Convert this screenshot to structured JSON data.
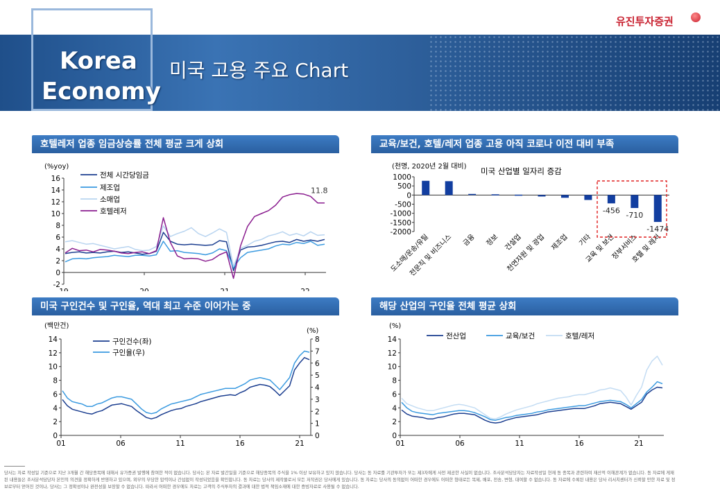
{
  "header": {
    "brand_line1": "Korea",
    "brand_line2": "Economy",
    "title": "미국 고용 주요 Chart",
    "logo": "유진투자증권",
    "colors": {
      "banner": "#2c5d98",
      "accent": "#c8202f"
    }
  },
  "panels": {
    "p1": {
      "title": "호텔레저 업종 임금상승률 전체 평균 크게 상회"
    },
    "p2": {
      "title": "교육/보건, 호텔/레저 업종 고용 아직 코로나 이전 대비 부족"
    },
    "p3": {
      "title": "미국 구인건수 및 구인율, 역대 최고 수준 이어가는 중"
    },
    "p4": {
      "title": "해당 산업의 구인율 전체 평균 상회"
    }
  },
  "chart_data": [
    {
      "type": "line",
      "ylabel": "(%yoy)",
      "ylim": [
        -2,
        16
      ],
      "yticks": [
        "16",
        "14",
        "12",
        "10",
        "8",
        "6",
        "4",
        "2",
        "0",
        "-2"
      ],
      "xticks": [
        "19",
        "20",
        "21",
        "22"
      ],
      "annotation": "11.8",
      "series": [
        {
          "name": "전체 시간당임금",
          "color": "#1a3d8f",
          "values": [
            3.2,
            3.4,
            3.5,
            3.3,
            3.4,
            3.3,
            3.5,
            3.6,
            3.4,
            3.5,
            3.3,
            3.1,
            3.2,
            3.6,
            6.8,
            5.3,
            4.8,
            4.7,
            4.8,
            4.7,
            4.6,
            4.7,
            5.4,
            5.2,
            0.3,
            3.8,
            4.3,
            4.4,
            4.6,
            4.9,
            5.2,
            5.3,
            5.1,
            5.6,
            5.3,
            5.5,
            5.3,
            5.6
          ]
        },
        {
          "name": "제조업",
          "color": "#3a9ae0",
          "values": [
            1.8,
            2.3,
            2.4,
            2.3,
            2.5,
            2.6,
            2.7,
            2.9,
            2.8,
            2.7,
            2.9,
            2.9,
            2.8,
            3.0,
            5.3,
            3.6,
            3.7,
            3.4,
            3.3,
            3.2,
            3.0,
            3.3,
            4.0,
            3.7,
            0.8,
            2.5,
            3.4,
            3.6,
            3.8,
            4.0,
            4.5,
            4.8,
            4.7,
            5.1,
            4.9,
            5.3,
            4.6,
            4.8
          ]
        },
        {
          "name": "소매업",
          "color": "#b8d4f0",
          "values": [
            5.2,
            5.4,
            5.1,
            4.8,
            4.9,
            4.6,
            4.3,
            4.0,
            4.2,
            4.4,
            3.9,
            3.7,
            3.8,
            4.4,
            7.9,
            6.1,
            6.6,
            7.0,
            7.6,
            6.6,
            6.1,
            6.7,
            7.4,
            6.8,
            1.0,
            4.1,
            4.6,
            5.3,
            5.6,
            6.2,
            6.5,
            6.9,
            6.3,
            6.6,
            6.2,
            6.9,
            6.3,
            6.4
          ]
        },
        {
          "name": "호텔레저",
          "color": "#8a1d8f",
          "values": [
            3.3,
            4.1,
            3.7,
            3.8,
            3.5,
            3.9,
            3.8,
            3.6,
            3.3,
            3.2,
            3.4,
            3.5,
            3.2,
            3.7,
            9.3,
            5.1,
            2.8,
            2.3,
            2.4,
            2.3,
            1.9,
            2.2,
            3.0,
            3.5,
            -1.0,
            4.5,
            7.8,
            9.5,
            10.0,
            10.5,
            11.4,
            12.8,
            13.2,
            13.4,
            13.3,
            12.9,
            11.8,
            11.8
          ]
        }
      ]
    },
    {
      "type": "bar",
      "title": "미국 산업별 일자리 증감",
      "ylabel": "(천명, 2020년 2월 대비)",
      "ylim": [
        -2000,
        1000
      ],
      "yticks": [
        "1000",
        "500",
        "0",
        "-500",
        "-1000",
        "-1500",
        "-2000"
      ],
      "categories": [
        "도소매/운송/유틸",
        "전문직 및 비즈니스",
        "금융",
        "정보",
        "건설업",
        "천연자원 및 광업",
        "제조업",
        "기타",
        "교육 및 보건",
        "정부서비스",
        "호텔 및 레저"
      ],
      "values": [
        780,
        760,
        60,
        40,
        20,
        -80,
        -150,
        -270,
        -456,
        -710,
        -1474
      ],
      "labels": [
        "-456",
        "-710",
        "-1474"
      ],
      "color": "#123ea0"
    },
    {
      "type": "line",
      "ylabel": "(백만건)",
      "y2label": "(%)",
      "ylim": [
        0,
        14
      ],
      "y2lim": [
        0,
        8
      ],
      "yticks": [
        "14",
        "12",
        "10",
        "8",
        "6",
        "4",
        "2",
        "0"
      ],
      "y2ticks": [
        "8",
        "7",
        "6",
        "5",
        "4",
        "3",
        "2",
        "1",
        "0"
      ],
      "xticks": [
        "01",
        "06",
        "11",
        "16",
        "21"
      ],
      "series": [
        {
          "name": "구인건수(좌)",
          "color": "#1a3d8f",
          "axis": "left",
          "values": [
            5.2,
            4.3,
            3.8,
            3.6,
            3.4,
            3.2,
            3.1,
            3.4,
            3.6,
            4.0,
            4.4,
            4.5,
            4.6,
            4.4,
            4.2,
            3.6,
            3.1,
            2.6,
            2.4,
            2.6,
            3.0,
            3.3,
            3.6,
            3.8,
            3.9,
            4.2,
            4.4,
            4.6,
            4.9,
            5.1,
            5.3,
            5.5,
            5.7,
            5.8,
            5.9,
            5.8,
            6.2,
            6.5,
            7.0,
            7.2,
            7.4,
            7.3,
            7.1,
            6.5,
            5.8,
            6.5,
            7.2,
            9.5,
            10.5,
            11.3,
            11.0
          ]
        },
        {
          "name": "구인율(우)",
          "color": "#3a9ae0",
          "axis": "right",
          "values": [
            3.7,
            3.1,
            2.8,
            2.7,
            2.6,
            2.4,
            2.4,
            2.6,
            2.7,
            2.9,
            3.1,
            3.2,
            3.2,
            3.1,
            3.0,
            2.6,
            2.2,
            1.9,
            1.8,
            1.9,
            2.2,
            2.4,
            2.6,
            2.7,
            2.8,
            2.9,
            3.0,
            3.2,
            3.4,
            3.5,
            3.6,
            3.7,
            3.8,
            3.9,
            3.9,
            3.9,
            4.1,
            4.3,
            4.6,
            4.7,
            4.8,
            4.7,
            4.6,
            4.2,
            3.8,
            4.3,
            4.8,
            6.0,
            6.6,
            7.0,
            6.9
          ]
        }
      ]
    },
    {
      "type": "line",
      "ylabel": "(%)",
      "ylim": [
        0,
        14
      ],
      "yticks": [
        "14",
        "12",
        "10",
        "8",
        "6",
        "4",
        "2",
        "0"
      ],
      "xticks": [
        "01",
        "06",
        "11",
        "16",
        "21"
      ],
      "series": [
        {
          "name": "전산업",
          "color": "#1a3d8f",
          "values": [
            3.7,
            3.1,
            2.8,
            2.7,
            2.6,
            2.4,
            2.4,
            2.6,
            2.7,
            2.9,
            3.1,
            3.2,
            3.2,
            3.1,
            3.0,
            2.6,
            2.2,
            1.9,
            1.8,
            1.9,
            2.2,
            2.4,
            2.6,
            2.7,
            2.8,
            2.9,
            3.0,
            3.2,
            3.4,
            3.5,
            3.6,
            3.7,
            3.8,
            3.9,
            3.9,
            3.9,
            4.1,
            4.3,
            4.6,
            4.7,
            4.8,
            4.7,
            4.6,
            4.2,
            3.8,
            4.3,
            4.8,
            6.0,
            6.6,
            7.0,
            6.9
          ]
        },
        {
          "name": "교육/보건",
          "color": "#3a9ae0",
          "values": [
            4.8,
            4.0,
            3.5,
            3.3,
            3.2,
            3.1,
            3.0,
            3.2,
            3.3,
            3.4,
            3.5,
            3.6,
            3.6,
            3.5,
            3.3,
            3.0,
            2.7,
            2.3,
            2.2,
            2.4,
            2.6,
            2.7,
            2.9,
            3.0,
            3.1,
            3.2,
            3.4,
            3.5,
            3.7,
            3.8,
            3.9,
            4.0,
            4.1,
            4.2,
            4.3,
            4.3,
            4.5,
            4.7,
            4.9,
            5.0,
            5.1,
            5.0,
            4.9,
            4.5,
            4.0,
            4.6,
            5.2,
            6.3,
            7.0,
            7.8,
            7.5
          ]
        },
        {
          "name": "호텔/레저",
          "color": "#c3dcf3",
          "values": [
            5.4,
            4.6,
            4.3,
            4.0,
            3.8,
            3.6,
            3.6,
            3.8,
            4.0,
            4.2,
            4.4,
            4.5,
            4.4,
            4.2,
            4.0,
            3.5,
            3.0,
            2.5,
            2.4,
            2.7,
            3.1,
            3.4,
            3.7,
            3.9,
            4.1,
            4.3,
            4.6,
            4.8,
            5.0,
            5.2,
            5.4,
            5.5,
            5.6,
            5.8,
            5.9,
            5.9,
            6.1,
            6.3,
            6.6,
            6.7,
            6.9,
            6.7,
            6.5,
            5.6,
            4.4,
            5.8,
            7.0,
            9.5,
            10.8,
            11.5,
            10.2
          ]
        }
      ]
    }
  ],
  "footer": {
    "disclaimer1": "당사는 자료 작성일 기준으로 지난 3개월 간 해당종목에 대해서 유가증권 발행에 참여한 적이 없습니다. 당사는 본 자료 발간일을 기준으로 해당종목의 주식을 1% 이상 보유하고 있지 않습니다. 당사는 동 자료를 기관투자가 또는 제3자에게 사전 제공한 사실이 없습니다. 조사분석담당자는 자료작성일 현재 동 종목과 관련하여 재산적 이해관계가 없습니다. 동 자료에 게재",
    "disclaimer2": "된 내용들은 조사분석담당자 본인의 의견을 정확하게 반영하고 있으며, 외부의 부당한 압력이나 간섭없이 작성되었음을 확인합니다. 동 자료는 당사의 제작물로서 모든 저작권은 당사에게 있습니다. 동 자료는 당사의 동의없이 어떠한 경우에도 어떠한 형태로든 복제, 배포, 전송, 변형, 대여할 수 없습니다. 동 자료에 수록된 내용은 당사 리서치센터가 신뢰할 만한 자료 및 정",
    "disclaimer3": "보로부터 얻어진 것이나, 당사는 그 정확성이나 완전성을 보장할 수 없습니다. 따라서 어떠한 경우에도 자료는 고객의 주식투자의 결과에 대한 법적 책임소재에 대한 증빙자료로 사용될 수 없습니다."
  }
}
